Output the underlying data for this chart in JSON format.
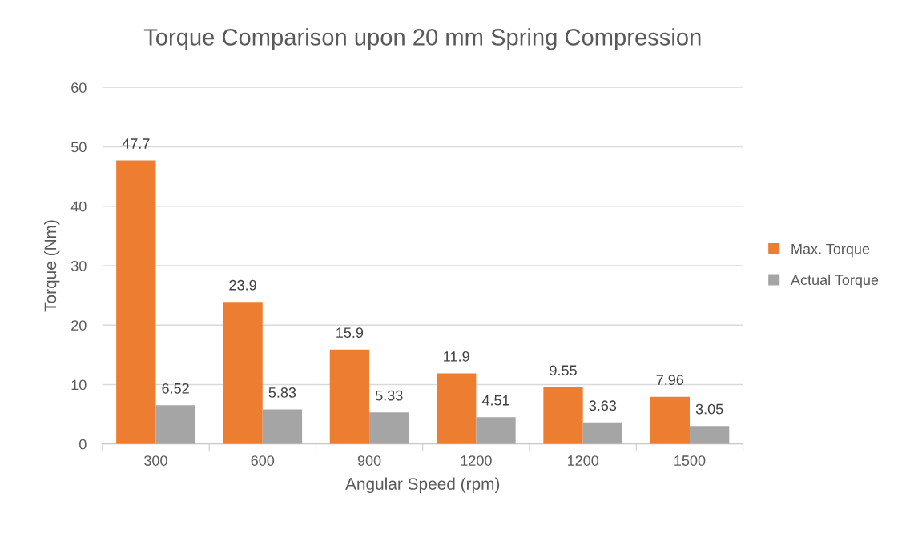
{
  "chart_data": {
    "type": "bar",
    "title": "Torque Comparison upon 20 mm Spring Compression",
    "xlabel": "Angular Speed (rpm)",
    "ylabel": "Torque (Nm)",
    "categories": [
      "300",
      "600",
      "900",
      "1200",
      "1200",
      "1500"
    ],
    "series": [
      {
        "name": "Max. Torque",
        "color": "#ed7d31",
        "values": [
          47.7,
          23.9,
          15.9,
          11.9,
          9.55,
          7.96
        ]
      },
      {
        "name": "Actual Torque",
        "color": "#a5a5a5",
        "values": [
          6.52,
          5.83,
          5.33,
          4.51,
          3.63,
          3.05
        ]
      }
    ],
    "ylim": [
      0,
      60
    ],
    "yticks": [
      0,
      10,
      20,
      30,
      40,
      50,
      60
    ],
    "grid": "y",
    "legend": "right",
    "data_labels": true
  }
}
